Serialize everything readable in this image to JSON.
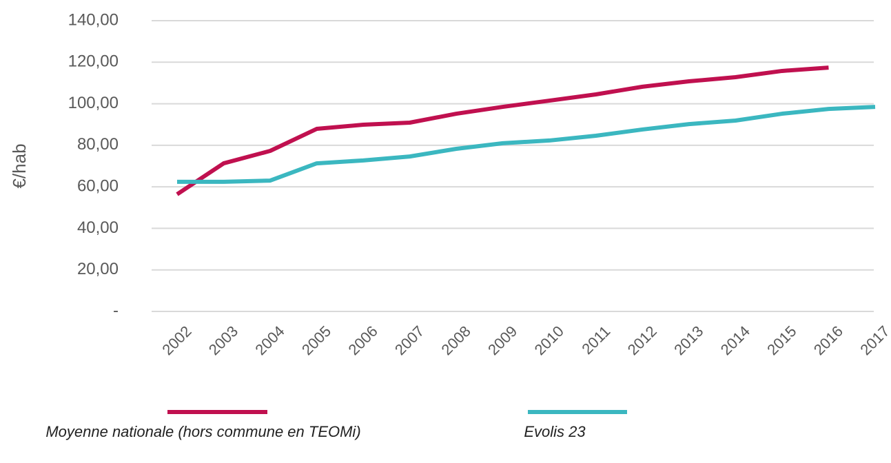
{
  "chart_data": {
    "type": "line",
    "y_label": "€/hab",
    "categories": [
      "2002",
      "2003",
      "2004",
      "2005",
      "2006",
      "2007",
      "2008",
      "2009",
      "2010",
      "2011",
      "2012",
      "2013",
      "2014",
      "2015",
      "2016",
      "2017"
    ],
    "series": [
      {
        "name": "Moyenne nationale (hors commune en TEOMi)",
        "color": "#c0104f",
        "values": [
          56.4,
          71.3,
          77.3,
          87.9,
          89.9,
          90.9,
          95.2,
          98.5,
          101.5,
          104.5,
          108.2,
          110.8,
          112.8,
          115.8,
          117.4,
          null
        ]
      },
      {
        "name": "Evolis 23",
        "color": "#3bb7c0",
        "values": [
          62.4,
          62.4,
          63.0,
          71.3,
          72.7,
          74.6,
          78.3,
          81.0,
          82.3,
          84.6,
          87.6,
          90.2,
          91.9,
          95.2,
          97.5,
          98.5
        ]
      }
    ],
    "ylim": [
      0,
      140
    ],
    "yticks": [
      {
        "value": 0,
        "label": "-"
      },
      {
        "value": 20,
        "label": "20,00"
      },
      {
        "value": 40,
        "label": "40,00"
      },
      {
        "value": 60,
        "label": "60,00"
      },
      {
        "value": 80,
        "label": "80,00"
      },
      {
        "value": 100,
        "label": "100,00"
      },
      {
        "value": 120,
        "label": "120,00"
      },
      {
        "value": 140,
        "label": "140,00"
      }
    ],
    "grid": true,
    "legend": "bottom"
  }
}
